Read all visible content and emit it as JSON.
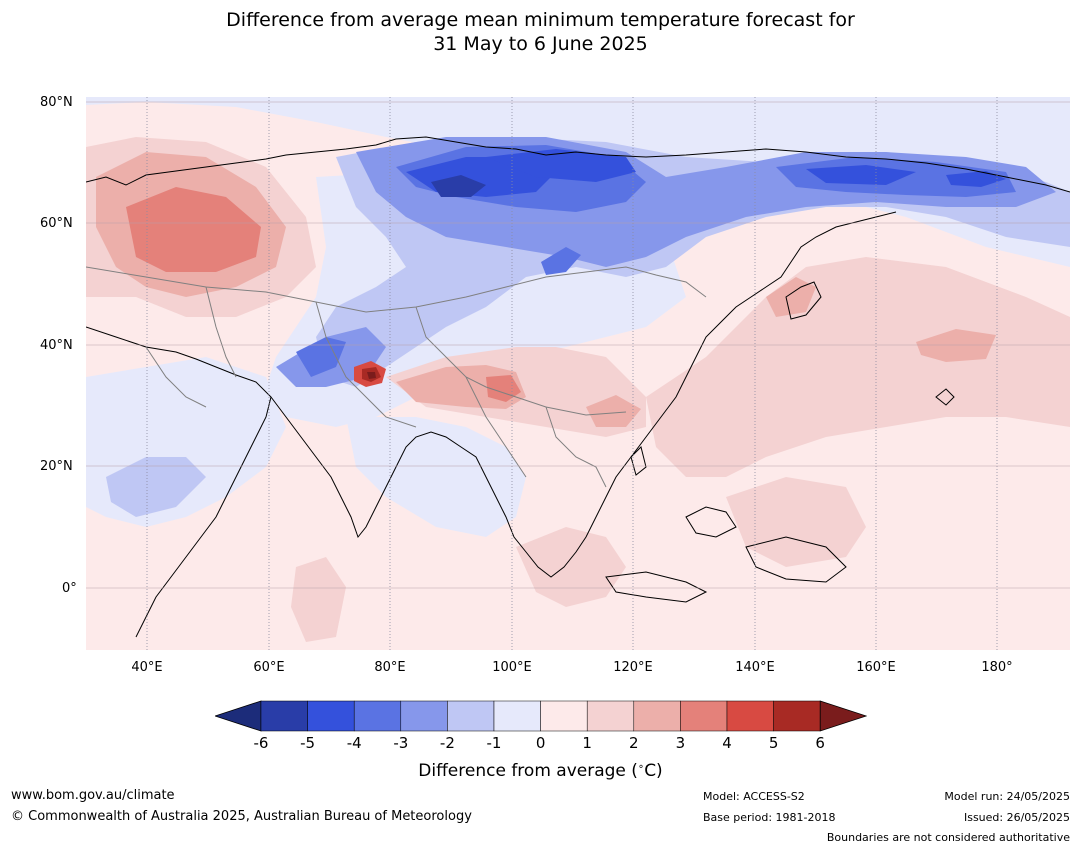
{
  "title_line1": "Difference from average mean minimum temperature forecast for",
  "title_line2": "31 May to 6 June 2025",
  "lat_labels": [
    "80°N",
    "60°N",
    "40°N",
    "20°N",
    "0°"
  ],
  "lon_labels": [
    "40°E",
    "60°E",
    "80°E",
    "100°E",
    "120°E",
    "140°E",
    "160°E",
    "180°"
  ],
  "colorbar": {
    "ticks": [
      "-6",
      "-5",
      "-4",
      "-3",
      "-2",
      "-1",
      "0",
      "1",
      "2",
      "3",
      "4",
      "5",
      "6"
    ],
    "colors": [
      "#293da8",
      "#3451dc",
      "#5a73e3",
      "#8697eb",
      "#bfc7f4",
      "#e6e9fb",
      "#fdeaea",
      "#f4d2d2",
      "#ecafaa",
      "#e4817a",
      "#d84a42",
      "#a82a24"
    ],
    "under_color": "#1c2c7a",
    "over_color": "#7a1c1c",
    "label": "Difference from average (",
    "label_unit": "C)",
    "label_degree": "∘"
  },
  "footer": {
    "website": "www.bom.gov.au/climate",
    "copyright": "© Commonwealth of Australia 2025, Australian Bureau of Meteorology",
    "model": "Model: ACCESS-S2",
    "base_period": "Base period: 1981-2018",
    "model_run": "Model run: 24/05/2025",
    "issued": "Issued: 26/05/2025",
    "disclaimer": "Boundaries are not considered authoritative"
  }
}
